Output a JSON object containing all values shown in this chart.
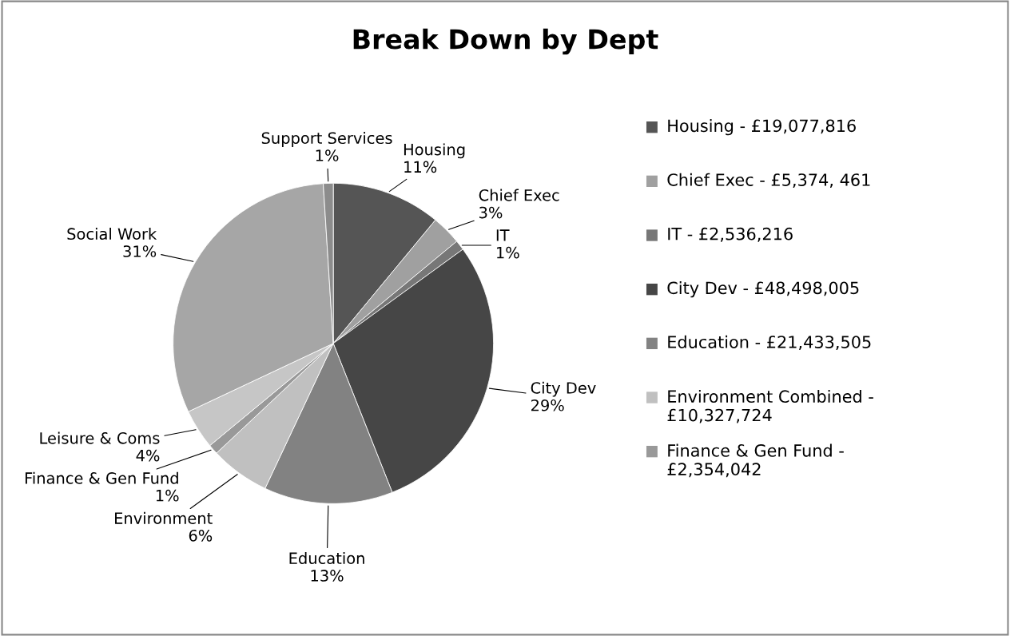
{
  "chart_data": {
    "type": "pie",
    "title": "Break Down by Dept",
    "categories": [
      "Housing",
      "Chief Exec",
      "IT",
      "City Dev",
      "Education",
      "Environment",
      "Finance & Gen Fund",
      "Leisure & Coms",
      "Social Work",
      "Support Services"
    ],
    "values": [
      11,
      3,
      1,
      29,
      13,
      6,
      1,
      4,
      31,
      1
    ],
    "value_labels": [
      "11%",
      "3%",
      "1%",
      "29%",
      "13%",
      "6%",
      "1%",
      "4%",
      "31%",
      "1%"
    ],
    "colors": [
      "#555555",
      "#a0a0a0",
      "#777777",
      "#464646",
      "#828282",
      "#c0c0c0",
      "#999999",
      "#c6c6c6",
      "#a6a6a6",
      "#8c8c8c"
    ],
    "annotations": [
      "Housing - £19,077,816",
      "Chief Exec - £5,374, 461",
      "IT - £2,536,216",
      "City Dev - £48,498,005",
      "Education - £21,433,505",
      "Environment Combined - £10,327,724",
      "Finance & Gen Fund - £2,354,042"
    ]
  }
}
